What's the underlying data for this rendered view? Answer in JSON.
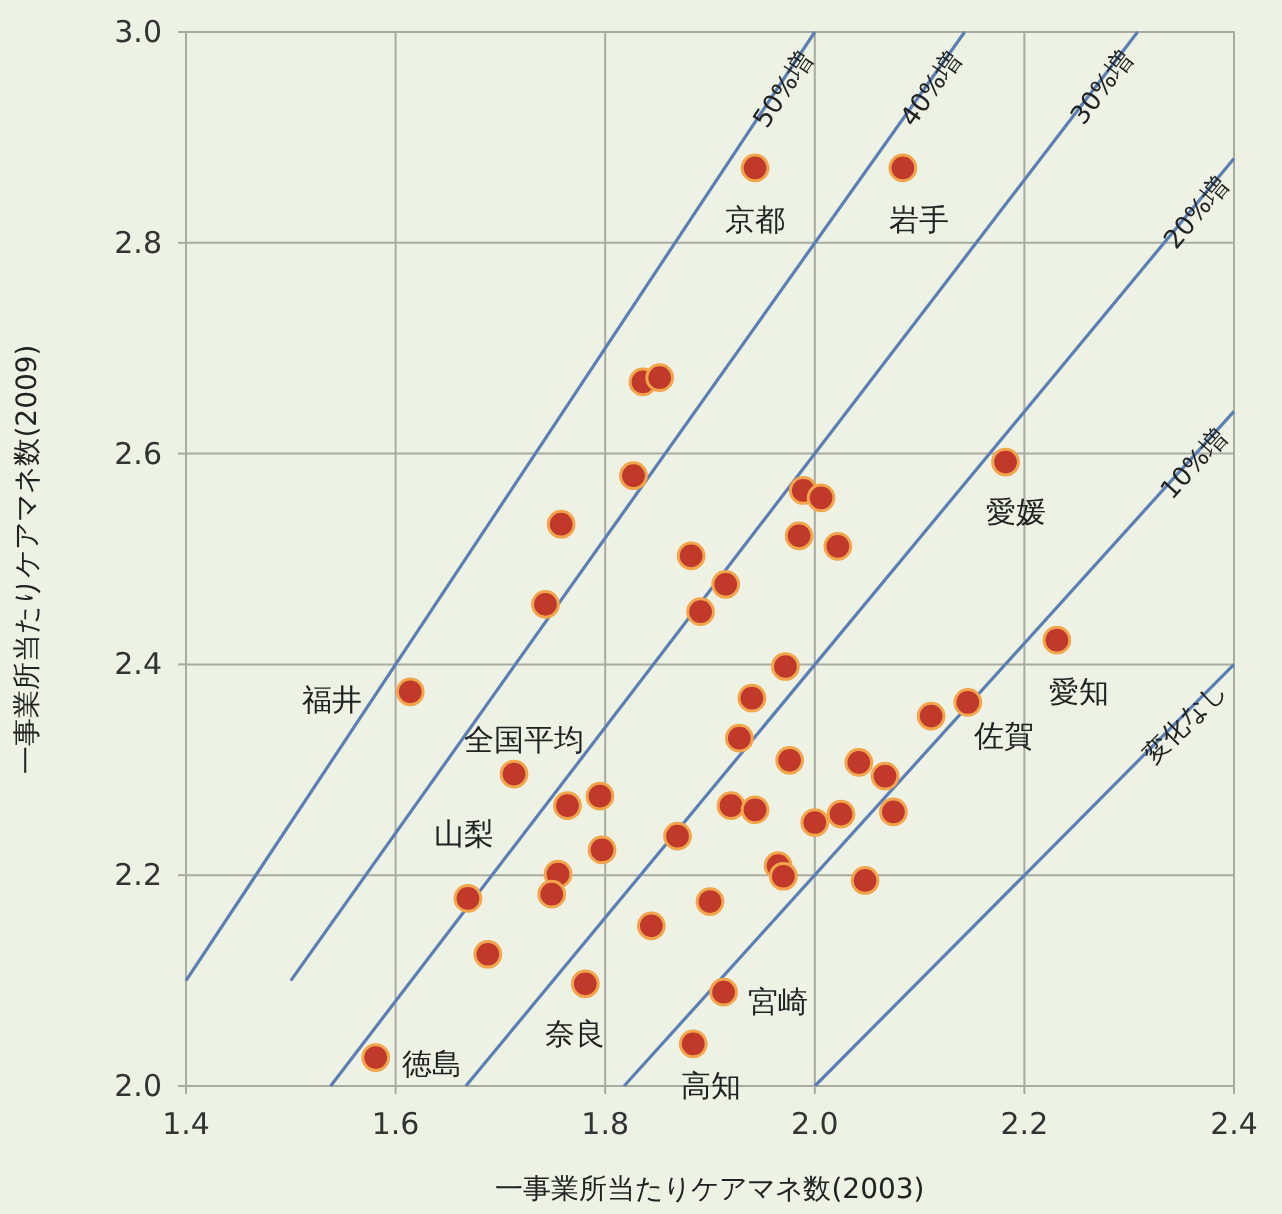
{
  "chart_data": {
    "type": "scatter",
    "xlabel": "一事業所当たりケアマネ数(2003)",
    "ylabel": "一事業所当たりケアマネ数(2009)",
    "xlim": [
      1.4,
      2.4
    ],
    "ylim": [
      2.0,
      3.0
    ],
    "xticks": [
      1.4,
      1.6,
      1.8,
      {
        "value": 2,
        "label": "2.0"
      },
      2.2,
      2.4
    ],
    "yticks": [
      {
        "value": 2,
        "label": "2.0"
      },
      2.2,
      2.4,
      2.6,
      2.8,
      {
        "value": 3,
        "label": "3.0"
      }
    ],
    "grid": true,
    "legend": false,
    "series": [
      {
        "type": "line",
        "name": "50%増",
        "color": "#5b7fb5",
        "x": [
          1.4,
          2.0
        ],
        "values": [
          2.1,
          3.0
        ]
      },
      {
        "type": "line",
        "name": "40%増",
        "color": "#5b7fb5",
        "x": [
          1.5,
          2.143
        ],
        "values": [
          2.1,
          3.0
        ]
      },
      {
        "type": "line",
        "name": "30%増",
        "color": "#5b7fb5",
        "x": [
          1.538,
          2.308
        ],
        "values": [
          2.0,
          3.0
        ]
      },
      {
        "type": "line",
        "name": "20%増",
        "color": "#5b7fb5",
        "x": [
          1.667,
          2.4
        ],
        "values": [
          2.0,
          2.88
        ]
      },
      {
        "type": "line",
        "name": "10%増",
        "color": "#5b7fb5",
        "x": [
          1.818,
          2.4
        ],
        "values": [
          2.0,
          2.64
        ]
      },
      {
        "type": "line",
        "name": "変化なし",
        "color": "#5b7fb5",
        "x": [
          2.0,
          2.4
        ],
        "values": [
          2.0,
          2.4
        ]
      },
      {
        "marker": "circle",
        "color": "#c0392b",
        "x": [
          1.943,
          2.084,
          1.836,
          1.852,
          1.827,
          1.758,
          1.743,
          1.882,
          1.915,
          1.891,
          1.989,
          2.006,
          1.985,
          2.022,
          2.182,
          1.614,
          1.972,
          1.94,
          1.928,
          2.231,
          2.146,
          2.111,
          1.713,
          1.764,
          1.795,
          1.797,
          1.755,
          1.749,
          1.669,
          1.688,
          1.781,
          1.581,
          1.869,
          1.844,
          1.9,
          1.913,
          1.884,
          1.92,
          1.943,
          1.976,
          2.042,
          2.067,
          2.0,
          2.025,
          2.075,
          1.965,
          1.97,
          2.048
        ],
        "values": [
          2.871,
          2.871,
          2.668,
          2.672,
          2.579,
          2.533,
          2.457,
          2.503,
          2.476,
          2.45,
          2.565,
          2.558,
          2.522,
          2.512,
          2.592,
          2.374,
          2.398,
          2.368,
          2.33,
          2.423,
          2.364,
          2.351,
          2.296,
          2.266,
          2.275,
          2.224,
          2.201,
          2.182,
          2.178,
          2.125,
          2.097,
          2.027,
          2.237,
          2.152,
          2.175,
          2.089,
          2.04,
          2.266,
          2.262,
          2.309,
          2.307,
          2.294,
          2.25,
          2.258,
          2.26,
          2.209,
          2.199,
          2.195
        ]
      }
    ],
    "annotations": [
      {
        "text": "京都",
        "x": 1.943,
        "y": 2.871
      },
      {
        "text": "岩手",
        "x": 2.084,
        "y": 2.871
      },
      {
        "text": "愛媛",
        "x": 2.182,
        "y": 2.592
      },
      {
        "text": "福井",
        "x": 1.614,
        "y": 2.374
      },
      {
        "text": "愛知",
        "x": 2.231,
        "y": 2.423
      },
      {
        "text": "佐賀",
        "x": 2.146,
        "y": 2.364
      },
      {
        "text": "全国平均",
        "x": 1.713,
        "y": 2.296
      },
      {
        "text": "山梨",
        "x": 1.669,
        "y": 2.178
      },
      {
        "text": "奈良",
        "x": 1.781,
        "y": 2.097
      },
      {
        "text": "徳島",
        "x": 1.581,
        "y": 2.027
      },
      {
        "text": "宮崎",
        "x": 1.913,
        "y": 2.089
      },
      {
        "text": "高知",
        "x": 1.884,
        "y": 2.04
      }
    ]
  }
}
